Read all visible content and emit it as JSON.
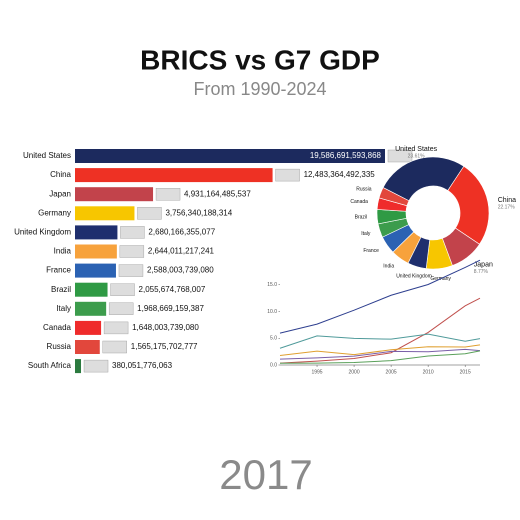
{
  "chart_data": [
    {
      "type": "bar",
      "title": "BRICS vs G7 GDP",
      "subtitle": "From 1990-2024",
      "annotation": "2017",
      "categories": [
        "United States",
        "China",
        "Japan",
        "Germany",
        "United Kingdom",
        "India",
        "France",
        "Brazil",
        "Italy",
        "Canada",
        "Russia",
        "South Africa"
      ],
      "values": [
        19586691593868,
        12483364492335,
        4931164485537,
        3756340188314,
        2680166355077,
        2644011217241,
        2588003739080,
        2055674768007,
        1968669159387,
        1648003739080,
        1565175702777,
        380051776063
      ],
      "value_labels": [
        "19,586,691,593,868",
        "12,483,364,492,335",
        "4,931,164,485,537",
        "3,756,340,188,314",
        "2,680,166,355,077",
        "2,644,011,217,241",
        "2,588,003,739,080",
        "2,055,674,768,007",
        "1,968,669,159,387",
        "1,648,003,739,080",
        "1,565,175,702,777",
        "380,051,776,063"
      ],
      "colors": [
        "#1c2a5e",
        "#ee3124",
        "#c2434b",
        "#f7c600",
        "#1f2f6e",
        "#f7a23c",
        "#2b62b3",
        "#2f9a44",
        "#3c9c4c",
        "#ef2b2b",
        "#e2473c",
        "#2b7a3f"
      ],
      "xlim": [
        0,
        19586691593868
      ]
    },
    {
      "type": "pie",
      "categories": [
        "United States",
        "China",
        "Japan",
        "Germany",
        "United Kingdom",
        "India",
        "France",
        "Italy",
        "Brazil",
        "Canada",
        "Russia"
      ],
      "values": [
        23.61,
        22.17,
        8.77,
        6.68,
        4.77,
        4.7,
        4.6,
        3.5,
        3.66,
        2.93,
        2.78
      ],
      "value_labels": [
        "23.61%",
        "22.17%",
        "8.77%",
        null,
        null,
        null,
        null,
        null,
        null,
        null,
        null
      ],
      "colors": [
        "#1c2a5e",
        "#ee3124",
        "#c2434b",
        "#f7c600",
        "#1f2f6e",
        "#f7a23c",
        "#2b62b3",
        "#3c9c4c",
        "#2f9a44",
        "#ef2b2b",
        "#e2473c"
      ]
    },
    {
      "type": "line",
      "x": [
        1990,
        1995,
        2000,
        2005,
        2010,
        2015,
        2017
      ],
      "series": [
        {
          "color": "#2e3f8f",
          "values": [
            5.96,
            7.64,
            10.25,
            13.04,
            15.05,
            18.24,
            19.59
          ]
        },
        {
          "color": "#c0504d",
          "values": [
            0.36,
            0.73,
            1.21,
            2.29,
            6.09,
            11.06,
            12.48
          ]
        },
        {
          "color": "#4f9a9a",
          "values": [
            3.13,
            5.45,
            4.97,
            4.83,
            5.76,
            4.44,
            4.93
          ]
        },
        {
          "color": "#e0a030",
          "values": [
            1.77,
            2.59,
            1.95,
            2.85,
            3.4,
            3.36,
            3.76
          ]
        },
        {
          "color": "#7a5fa8",
          "values": [
            1.09,
            1.34,
            1.66,
            2.54,
            2.48,
            2.93,
            2.68
          ]
        },
        {
          "color": "#5aa05a",
          "values": [
            0.32,
            0.36,
            0.47,
            0.82,
            1.68,
            2.1,
            2.64
          ]
        }
      ],
      "xlim": [
        1990,
        2017
      ],
      "ylim": [
        0,
        20
      ],
      "xticks": [
        1995,
        2000,
        2005,
        2010,
        2015
      ],
      "yticks": [
        {
          "value": 0,
          "label": "0.0"
        },
        {
          "value": 5,
          "label": "5.0"
        },
        {
          "value": 10,
          "label": "10.0"
        },
        {
          "value": 15,
          "label": "15.0"
        }
      ],
      "grid": false
    }
  ]
}
